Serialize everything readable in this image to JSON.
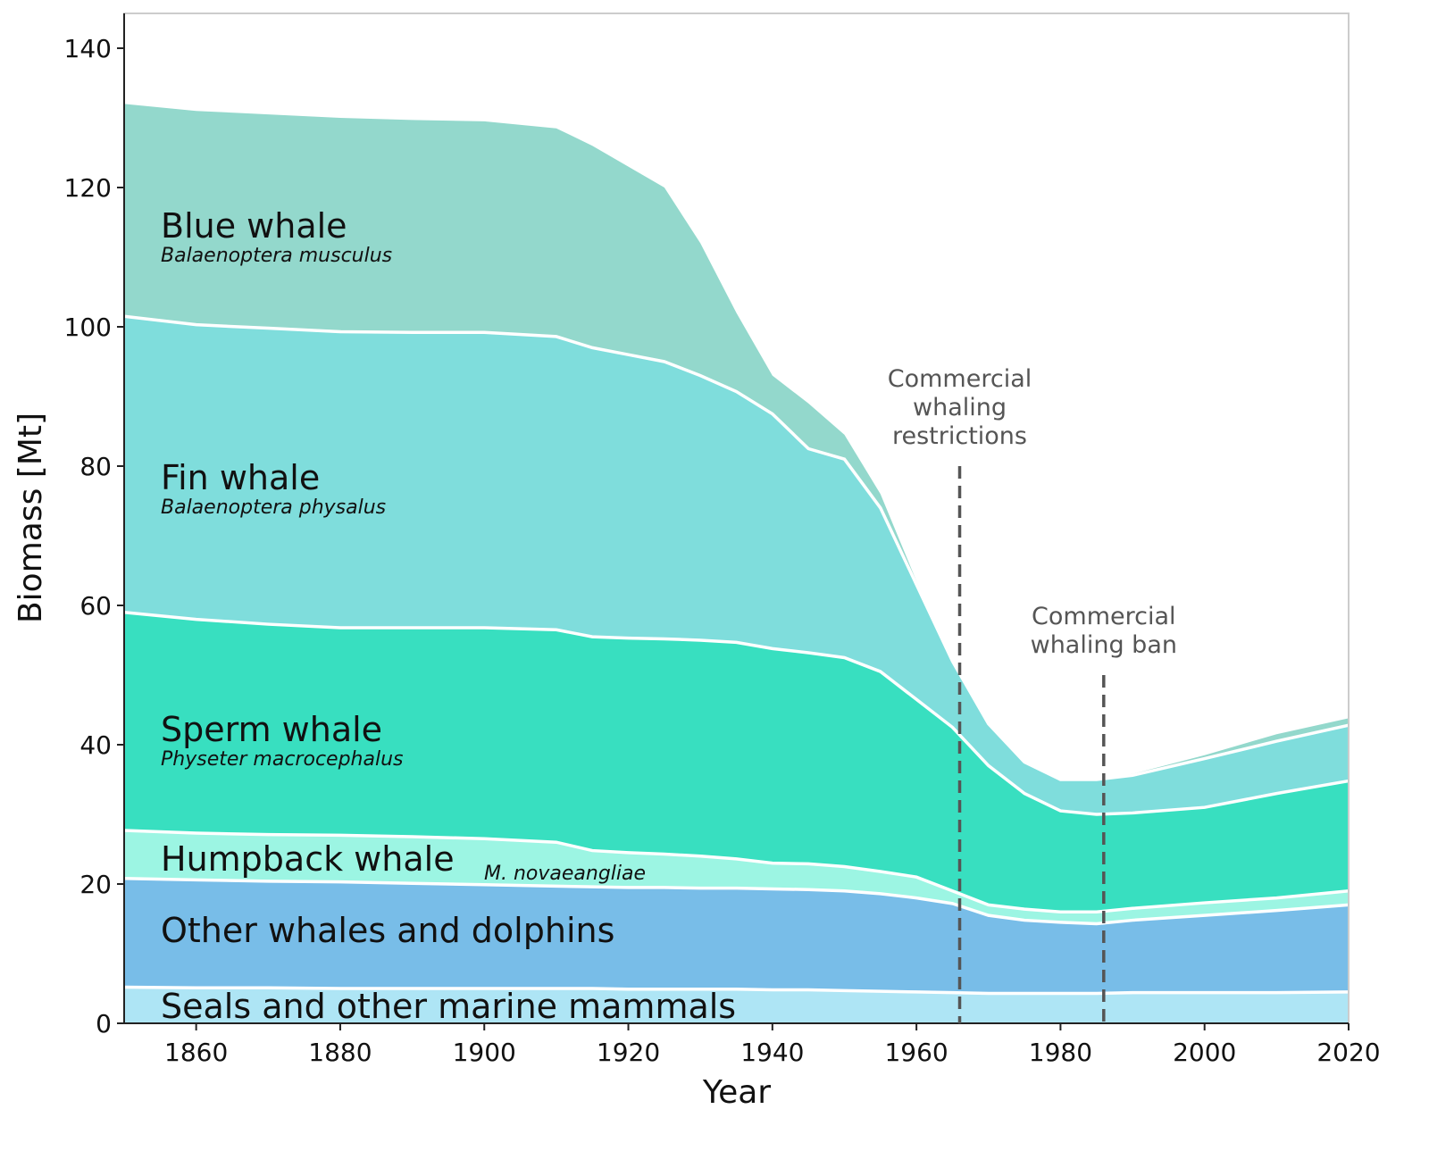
{
  "chart_data": {
    "type": "stacked_area",
    "x_label": "Year",
    "y_label": "Biomass [Mt]",
    "x": [
      1850,
      1860,
      1870,
      1880,
      1890,
      1900,
      1910,
      1915,
      1920,
      1925,
      1930,
      1935,
      1940,
      1945,
      1950,
      1955,
      1960,
      1965,
      1970,
      1975,
      1980,
      1985,
      1990,
      2000,
      2010,
      2020
    ],
    "series": [
      {
        "name": "Seals and other marine mammals",
        "color": "#aee5f5",
        "values": [
          5.2,
          5.1,
          5.1,
          5.0,
          5.0,
          5.0,
          5.0,
          5.0,
          4.9,
          4.9,
          4.9,
          4.9,
          4.8,
          4.8,
          4.7,
          4.6,
          4.5,
          4.4,
          4.3,
          4.3,
          4.3,
          4.3,
          4.4,
          4.4,
          4.4,
          4.5
        ]
      },
      {
        "name": "Other whales and dolphins",
        "color": "#78bde8",
        "values": [
          15.6,
          15.5,
          15.3,
          15.3,
          15.1,
          14.9,
          14.7,
          14.6,
          14.6,
          14.6,
          14.5,
          14.5,
          14.5,
          14.4,
          14.3,
          14.0,
          13.5,
          12.8,
          11.2,
          10.5,
          10.2,
          10.0,
          10.4,
          11.1,
          11.8,
          12.5
        ]
      },
      {
        "name": "Humpback whale",
        "scientific_name": "M. novaeangliae",
        "color": "#9cf5e3",
        "values": [
          6.9,
          6.7,
          6.7,
          6.7,
          6.7,
          6.6,
          6.3,
          5.2,
          5.0,
          4.8,
          4.6,
          4.2,
          3.7,
          3.7,
          3.5,
          3.2,
          3.0,
          1.8,
          1.5,
          1.6,
          1.5,
          1.7,
          1.7,
          1.8,
          1.8,
          2.0
        ]
      },
      {
        "name": "Sperm whale",
        "scientific_name": "Physeter macrocephalus",
        "color": "#38dfc0",
        "values": [
          31.3,
          30.7,
          30.2,
          29.8,
          30.0,
          30.3,
          30.5,
          30.7,
          30.8,
          30.9,
          31.0,
          31.1,
          30.8,
          30.3,
          30.0,
          28.7,
          25.5,
          23.5,
          20.0,
          16.6,
          14.5,
          14.0,
          13.7,
          13.7,
          15.0,
          15.8
        ]
      },
      {
        "name": "Fin whale",
        "scientific_name": "Balaenoptera physalus",
        "color": "#7fdddc",
        "values": [
          42.5,
          42.3,
          42.5,
          42.5,
          42.4,
          42.4,
          42.1,
          41.5,
          40.7,
          39.8,
          38.0,
          36.0,
          33.7,
          29.3,
          28.5,
          23.5,
          16.5,
          9.5,
          6.0,
          4.5,
          4.5,
          5.0,
          5.4,
          7.0,
          7.5,
          8.0
        ]
      },
      {
        "name": "Blue whale",
        "scientific_name": "Balaenoptera musculus",
        "color": "#93d8cc",
        "values": [
          30.5,
          30.7,
          30.7,
          30.7,
          30.5,
          30.3,
          29.9,
          29.0,
          27.0,
          25.0,
          19.0,
          11.3,
          5.5,
          6.5,
          3.5,
          2.0,
          0.5,
          0,
          0,
          0,
          0,
          0,
          0.2,
          0.5,
          1.0,
          1.0
        ]
      }
    ],
    "annotations": [
      {
        "lines": [
          "Commercial",
          "whaling",
          "restrictions"
        ],
        "x": 1966
      },
      {
        "lines": [
          "Commercial",
          "whaling ban"
        ],
        "x": 1986
      }
    ],
    "xlim": [
      1850,
      2020
    ],
    "ylim": [
      0,
      145
    ],
    "xticks": [
      1860,
      1880,
      1900,
      1920,
      1940,
      1960,
      1980,
      2000,
      2020
    ],
    "yticks": [
      0,
      20,
      40,
      60,
      80,
      100,
      120,
      140
    ]
  }
}
